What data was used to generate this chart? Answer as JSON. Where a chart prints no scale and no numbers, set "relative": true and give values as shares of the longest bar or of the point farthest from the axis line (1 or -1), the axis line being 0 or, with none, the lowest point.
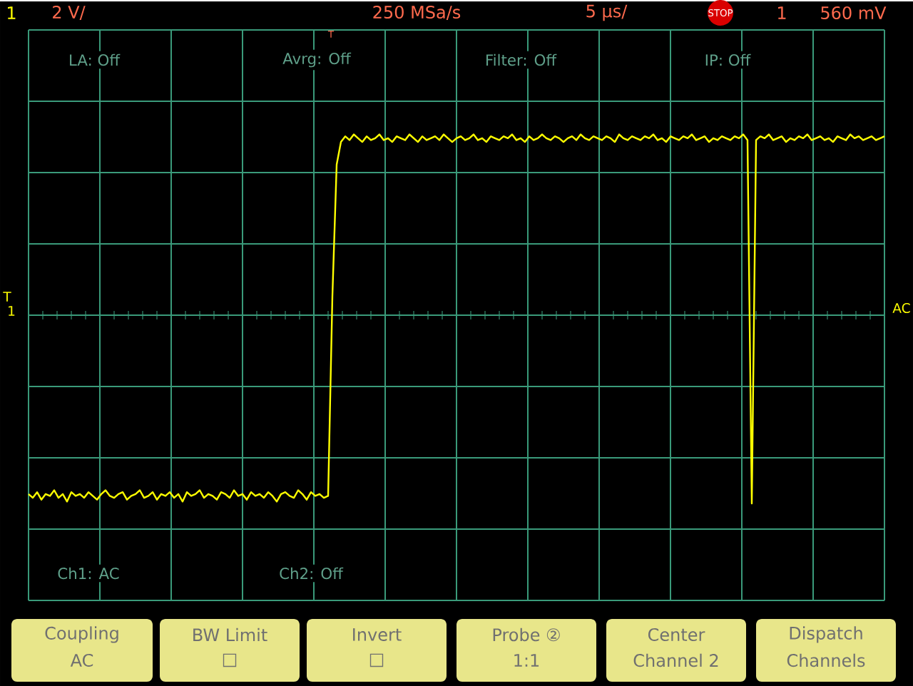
{
  "chart_data": {
    "type": "line",
    "relative": true,
    "grid": true,
    "categories": [
      null,
      null,
      null,
      null,
      null,
      null,
      null,
      null,
      null,
      null,
      null,
      null,
      null,
      null,
      null,
      null,
      null,
      null,
      null,
      null,
      null,
      null,
      null,
      null,
      null,
      null,
      null,
      null,
      null,
      null,
      null,
      null,
      null,
      null,
      null,
      null,
      null,
      null,
      null,
      null,
      null,
      null,
      null,
      null,
      null,
      null,
      null,
      null,
      null,
      null,
      null,
      null,
      null,
      null,
      null,
      null,
      null,
      null,
      null,
      null,
      null,
      null,
      null,
      null,
      null,
      null,
      null,
      null,
      null,
      null,
      null,
      null,
      null,
      null,
      null,
      null,
      null,
      null,
      null,
      null,
      null,
      null,
      null,
      null,
      null,
      null,
      null,
      null,
      null,
      null,
      null,
      null,
      null,
      null,
      null,
      null,
      null,
      null,
      null,
      null,
      null,
      null,
      null,
      null,
      null,
      null,
      null,
      null,
      null,
      null,
      null,
      null,
      null,
      null,
      null,
      null,
      null,
      null,
      null,
      null,
      null,
      null,
      null,
      null,
      null,
      null,
      null,
      null,
      null,
      null,
      null,
      null,
      null,
      null,
      null,
      null,
      null,
      null,
      null,
      null,
      null,
      null,
      null,
      null,
      null,
      null,
      null,
      null,
      null,
      null,
      null,
      null,
      null,
      null,
      null,
      null,
      null,
      null,
      null,
      null,
      null,
      null,
      null,
      null,
      null,
      null,
      null,
      null,
      null,
      null,
      null,
      null,
      null,
      null,
      null,
      null,
      null,
      null,
      null,
      null,
      null,
      null,
      null,
      null,
      null,
      null,
      null,
      null,
      null,
      null,
      null,
      null,
      null,
      null,
      null,
      null,
      null,
      null,
      null,
      null,
      null
    ],
    "series": [
      {
        "color": "#ffff00",
        "values": [
          -0.95,
          -0.97,
          -0.94,
          -0.98,
          -0.95,
          -0.96,
          -0.93,
          -0.97,
          -0.95,
          -0.99,
          -0.94,
          -0.96,
          -0.95,
          -0.97,
          -0.94,
          -0.96,
          -0.98,
          -0.95,
          -0.93,
          -0.96,
          -0.97,
          -0.95,
          -0.94,
          -0.98,
          -0.96,
          -0.95,
          -0.93,
          -0.97,
          -0.96,
          -0.94,
          -0.98,
          -0.95,
          -0.96,
          -0.94,
          -0.97,
          -0.95,
          -0.99,
          -0.94,
          -0.96,
          -0.95,
          -0.93,
          -0.97,
          -0.95,
          -0.96,
          -0.98,
          -0.94,
          -0.95,
          -0.97,
          -0.93,
          -0.96,
          -0.95,
          -0.98,
          -0.94,
          -0.96,
          -0.95,
          -0.97,
          -0.94,
          -0.96,
          -0.99,
          -0.95,
          -0.94,
          -0.96,
          -0.97,
          -0.93,
          -0.95,
          -0.98,
          -0.94,
          -0.96,
          -0.95,
          -0.97,
          -0.96,
          0.1,
          0.8,
          0.92,
          0.95,
          0.93,
          0.96,
          0.94,
          0.92,
          0.95,
          0.93,
          0.94,
          0.96,
          0.93,
          0.94,
          0.92,
          0.95,
          0.94,
          0.93,
          0.96,
          0.94,
          0.92,
          0.95,
          0.93,
          0.94,
          0.95,
          0.93,
          0.96,
          0.94,
          0.92,
          0.94,
          0.95,
          0.93,
          0.94,
          0.96,
          0.93,
          0.94,
          0.92,
          0.95,
          0.94,
          0.93,
          0.95,
          0.94,
          0.96,
          0.93,
          0.94,
          0.92,
          0.95,
          0.93,
          0.94,
          0.96,
          0.94,
          0.93,
          0.95,
          0.94,
          0.92,
          0.94,
          0.95,
          0.93,
          0.96,
          0.94,
          0.93,
          0.95,
          0.94,
          0.93,
          0.95,
          0.94,
          0.92,
          0.96,
          0.94,
          0.93,
          0.95,
          0.94,
          0.93,
          0.95,
          0.94,
          0.96,
          0.93,
          0.94,
          0.92,
          0.95,
          0.94,
          0.93,
          0.95,
          0.94,
          0.96,
          0.93,
          0.94,
          0.95,
          0.92,
          0.94,
          0.93,
          0.95,
          0.94,
          0.93,
          0.95,
          0.94,
          0.96,
          0.93,
          -1.0,
          0.93,
          0.95,
          0.94,
          0.96,
          0.93,
          0.94,
          0.95,
          0.92,
          0.94,
          0.93,
          0.95,
          0.94,
          0.96,
          0.93,
          0.94,
          0.95,
          0.93,
          0.94,
          0.92,
          0.95,
          0.94,
          0.93,
          0.96,
          0.94,
          0.95,
          0.93,
          0.94,
          0.95,
          0.93,
          0.94,
          0.95
        ]
      }
    ],
    "annotations": [
      "1",
      "2 V/",
      "250 MSa/s",
      "5 µs/",
      "STOP",
      "1",
      "560 mV",
      "LA: Off",
      "Avrg: Off",
      "Filter: Off",
      "IP: Off",
      "Ch1: AC",
      "Ch2: Off",
      "T",
      "1",
      "AC",
      "Coupling",
      "AC",
      "BW Limit",
      "□",
      "Invert",
      "□",
      "Probe ②",
      "1:1",
      "Center",
      "Channel 2",
      "Dispatch",
      "Channels",
      "T"
    ]
  }
}
